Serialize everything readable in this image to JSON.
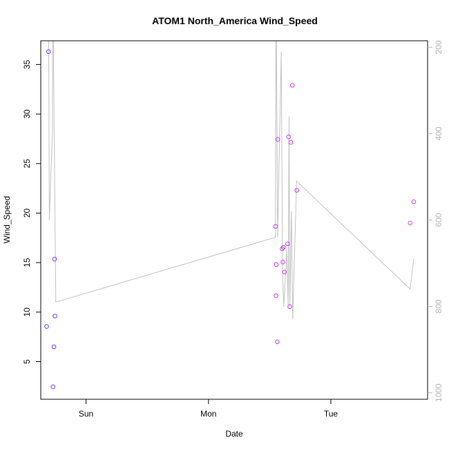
{
  "chart_data": {
    "type": "scatter",
    "title": "ATOM1 North_America Wind_Speed",
    "xlabel": "Date",
    "ylabel": "Wind_Speed",
    "x_ticks": [
      {
        "label": "Sun",
        "day": 1
      },
      {
        "label": "Mon",
        "day": 2
      },
      {
        "label": "Tue",
        "day": 3
      }
    ],
    "xlim_days": [
      0.63,
      3.79
    ],
    "ylim": [
      1.2,
      37.4
    ],
    "y_ticks": [
      5,
      10,
      15,
      20,
      25,
      30,
      35
    ],
    "y2_ticks": [
      200,
      400,
      600,
      800,
      1000
    ],
    "y2lim": [
      1015,
      185
    ],
    "y2_reversed": true,
    "grid": false,
    "points": [
      {
        "d": 0.678,
        "v": 8.55,
        "c": "#7b2ff7"
      },
      {
        "d": 0.694,
        "v": 36.3,
        "c": "#7b2ff7"
      },
      {
        "d": 0.73,
        "v": 2.45,
        "c": "#7b2ff7"
      },
      {
        "d": 0.738,
        "v": 6.5,
        "c": "#7b2ff7"
      },
      {
        "d": 0.743,
        "v": 15.35,
        "c": "#7b2ff7"
      },
      {
        "d": 0.746,
        "v": 9.6,
        "c": "#7b2ff7"
      },
      {
        "d": 2.548,
        "v": 18.65,
        "c": "#c038ec"
      },
      {
        "d": 2.552,
        "v": 11.65,
        "c": "#c038ec"
      },
      {
        "d": 2.554,
        "v": 14.8,
        "c": "#c038ec"
      },
      {
        "d": 2.562,
        "v": 7.0,
        "c": "#c038ec"
      },
      {
        "d": 2.566,
        "v": 27.45,
        "c": "#c038ec"
      },
      {
        "d": 2.603,
        "v": 16.4,
        "c": "#c038ec"
      },
      {
        "d": 2.608,
        "v": 15.05,
        "c": "#c038ec"
      },
      {
        "d": 2.612,
        "v": 16.55,
        "c": "#c038ec"
      },
      {
        "d": 2.621,
        "v": 14.05,
        "c": "#c038ec"
      },
      {
        "d": 2.647,
        "v": 16.9,
        "c": "#c038ec"
      },
      {
        "d": 2.656,
        "v": 27.7,
        "c": "#c038ec"
      },
      {
        "d": 2.664,
        "v": 10.55,
        "c": "#c038ec"
      },
      {
        "d": 2.673,
        "v": 27.15,
        "c": "#c038ec"
      },
      {
        "d": 2.685,
        "v": 32.9,
        "c": "#c038ec"
      },
      {
        "d": 2.722,
        "v": 22.3,
        "c": "#c038ec"
      },
      {
        "d": 3.647,
        "v": 19.0,
        "c": "#e040e0"
      },
      {
        "d": 3.677,
        "v": 21.15,
        "c": "#e040e0"
      }
    ],
    "pressure_line": {
      "color": "#c0c0c0",
      "d": [
        0.694,
        0.7,
        0.725,
        0.73,
        0.753,
        2.547,
        2.552,
        2.555,
        2.565,
        2.595,
        2.605,
        2.615,
        2.64,
        2.651,
        2.658,
        2.665,
        2.678,
        2.688,
        2.72,
        3.647,
        3.677
      ],
      "p": [
        100,
        600,
        400,
        100,
        790,
        640,
        100,
        170,
        640,
        210,
        720,
        800,
        670,
        800,
        360,
        800,
        580,
        830,
        510,
        760,
        690
      ]
    }
  }
}
